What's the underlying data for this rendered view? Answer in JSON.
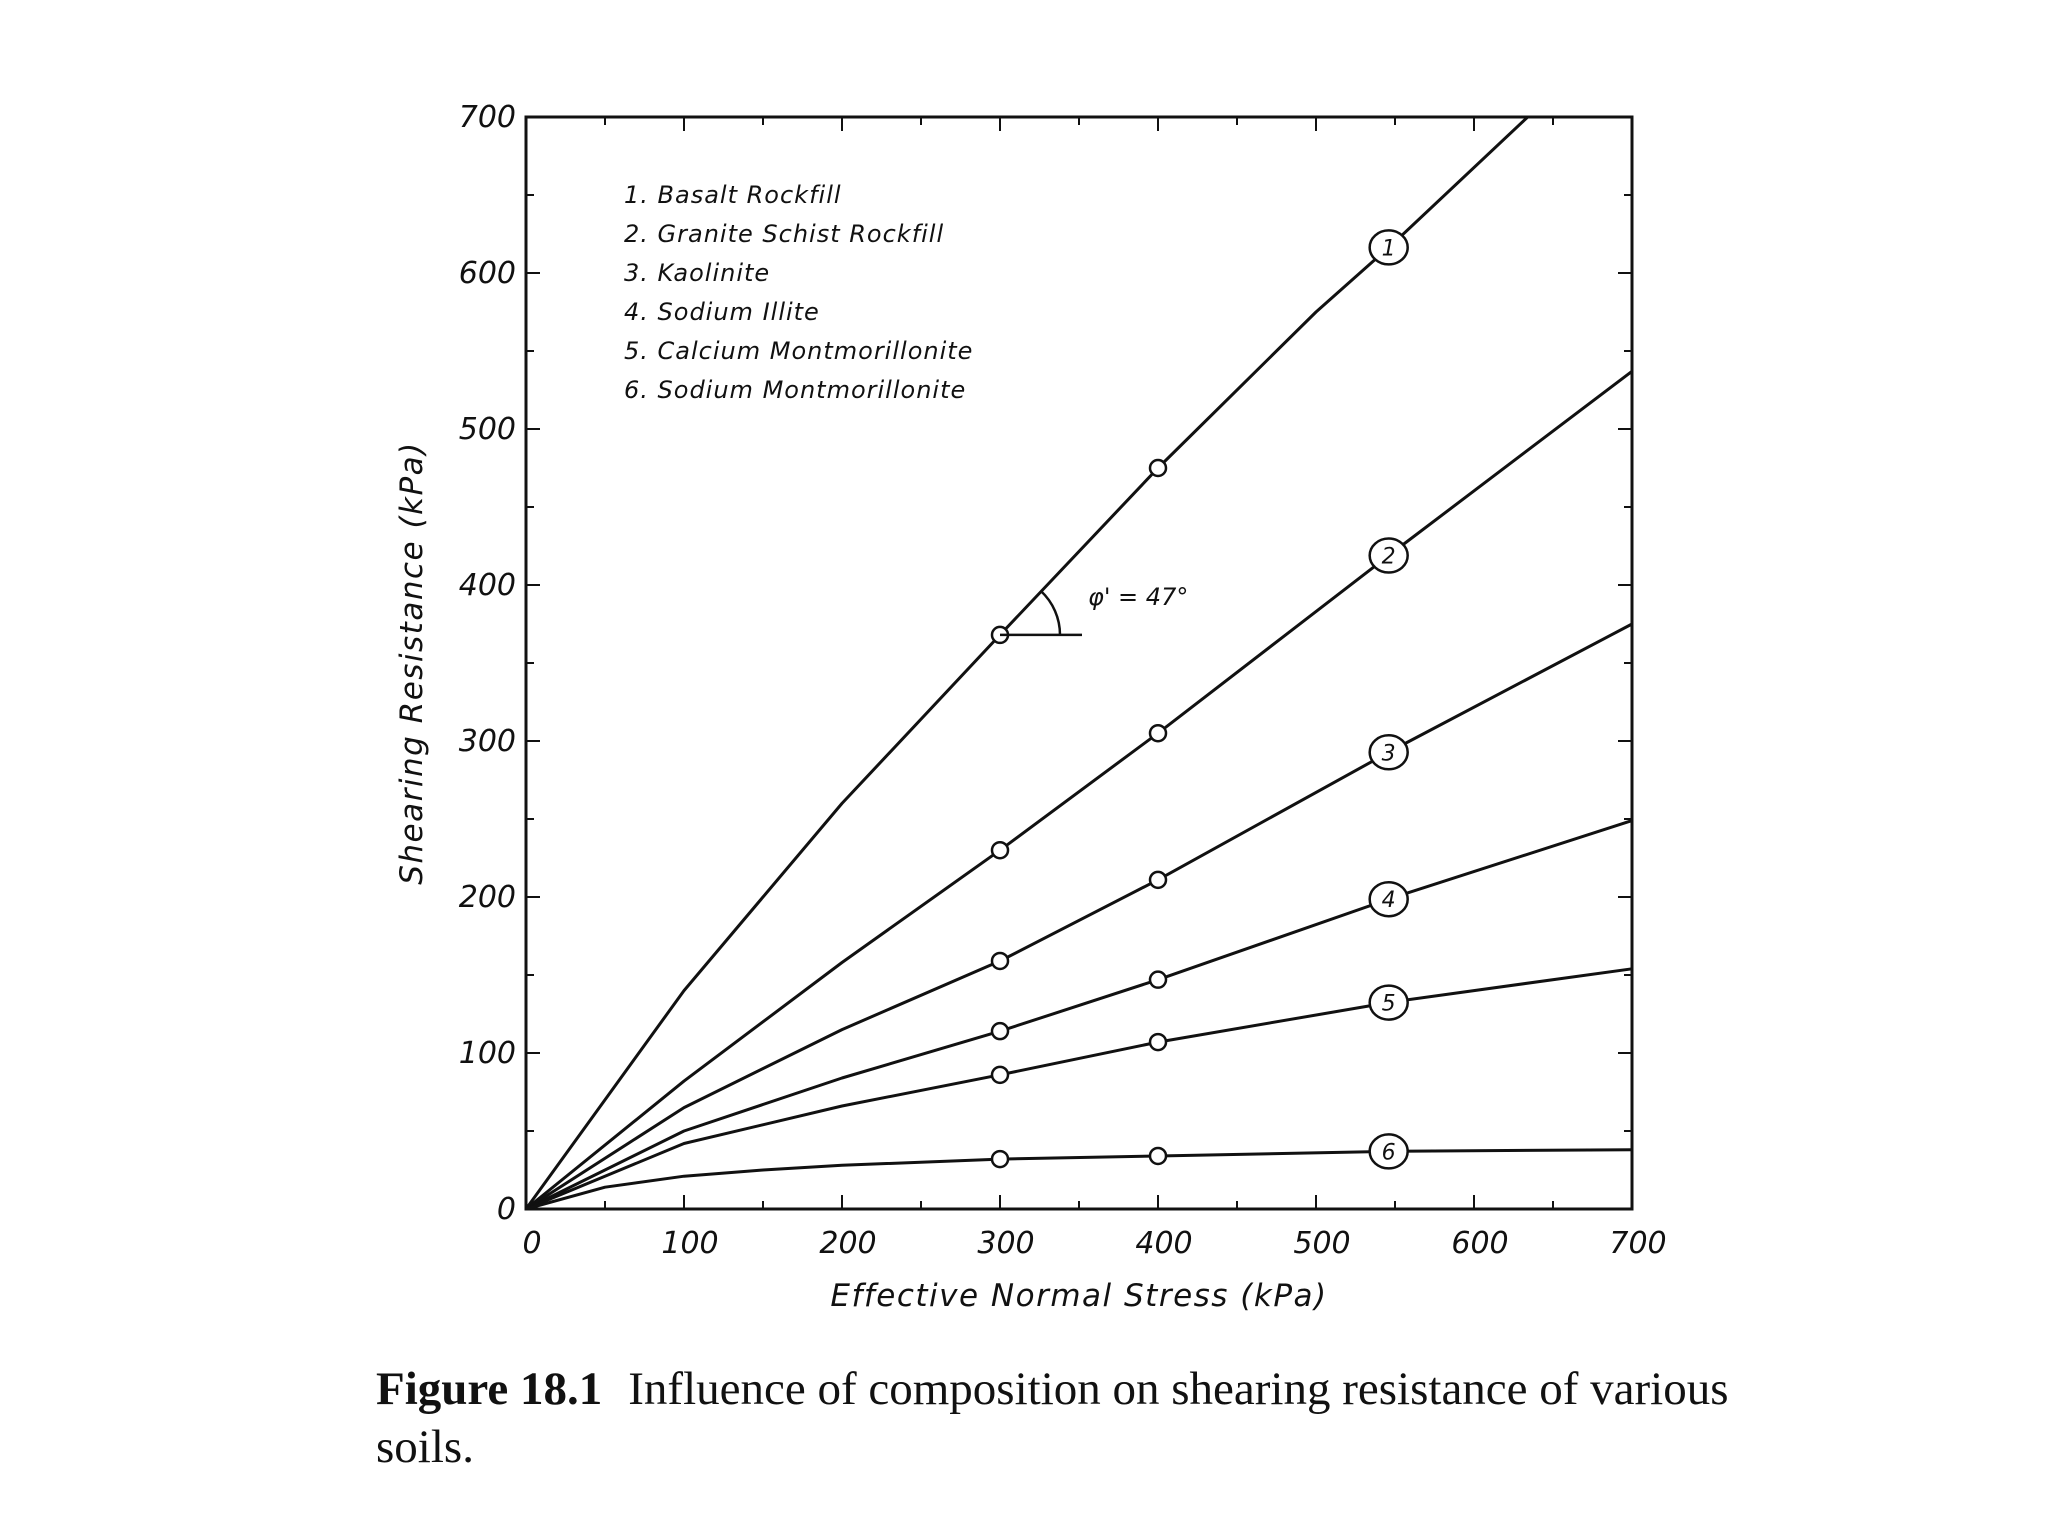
{
  "chart_data": {
    "type": "line",
    "xlabel": "Effective Normal Stress (kPa)",
    "ylabel": "Shearing Resistance (kPa)",
    "xlim": [
      0,
      700
    ],
    "ylim": [
      0,
      700
    ],
    "xticks": [
      0,
      100,
      200,
      300,
      400,
      500,
      600,
      700
    ],
    "yticks": [
      0,
      100,
      200,
      300,
      400,
      500,
      600,
      700
    ],
    "legend": [
      "1. Basalt Rockfill",
      "2. Granite Schist Rockfill",
      "3. Kaolinite",
      "4. Sodium Illite",
      "5. Calcium Montmorillonite",
      "6. Sodium Montmorillonite"
    ],
    "legend_position": "top-left",
    "series": [
      {
        "label": "1",
        "x": [
          0,
          100,
          200,
          300,
          400,
          500,
          550,
          634
        ],
        "y": [
          0,
          140,
          260,
          368,
          475,
          575,
          620,
          700
        ],
        "markers_x": [
          300,
          400
        ],
        "label_x": 546
      },
      {
        "label": "2",
        "x": [
          0,
          100,
          200,
          300,
          400,
          550,
          700
        ],
        "y": [
          0,
          82,
          158,
          230,
          305,
          422,
          537
        ],
        "markers_x": [
          300,
          400
        ],
        "label_x": 546
      },
      {
        "label": "3",
        "x": [
          0,
          100,
          200,
          300,
          400,
          550,
          700
        ],
        "y": [
          0,
          65,
          115,
          159,
          211,
          295,
          375
        ],
        "markers_x": [
          300,
          400
        ],
        "label_x": 546
      },
      {
        "label": "4",
        "x": [
          0,
          100,
          200,
          300,
          400,
          550,
          700
        ],
        "y": [
          0,
          50,
          84,
          114,
          147,
          200,
          249
        ],
        "markers_x": [
          300,
          400
        ],
        "label_x": 546
      },
      {
        "label": "5",
        "x": [
          0,
          100,
          200,
          300,
          400,
          550,
          700
        ],
        "y": [
          0,
          42,
          66,
          86,
          107,
          133,
          154
        ],
        "markers_x": [
          300,
          400
        ],
        "label_x": 546
      },
      {
        "label": "6",
        "x": [
          0,
          50,
          100,
          150,
          200,
          300,
          400,
          550,
          700
        ],
        "y": [
          0,
          14,
          21,
          25,
          28,
          32,
          34,
          37,
          38
        ],
        "markers_x": [
          300,
          400
        ],
        "label_x": 546
      }
    ],
    "annotation": {
      "text": "φ' = 47°",
      "x": 300,
      "y": 368,
      "angle_deg": 47
    }
  },
  "caption": {
    "number": "Figure 18.1",
    "text": "Influence of composition on shearing resistance of various soils."
  }
}
